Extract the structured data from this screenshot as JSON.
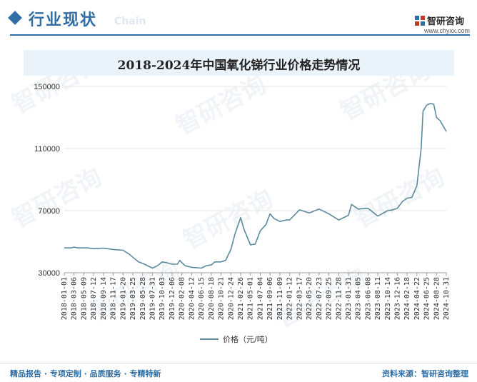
{
  "header": {
    "title": "行业现状",
    "title_en": "Chain",
    "brand_name": "智研咨询",
    "brand_site": "www.chyxx.com"
  },
  "watermark": "智研咨询",
  "footer": {
    "left": "精品报告 · 专项定制 · 品质服务 · 专精特新",
    "right": "资料来源：智研咨询整理"
  },
  "colors": {
    "accent": "#2f6fa6",
    "line": "#5b8a9c",
    "title_bg": "#eaf2fa"
  },
  "chart_data": {
    "type": "line",
    "title": "2018-2024年中国氧化锑行业价格走势情况",
    "xlabel": "",
    "ylabel": "",
    "ylim": [
      30000,
      150000
    ],
    "yticks": [
      30000,
      70000,
      110000,
      150000
    ],
    "legend_position": "bottom",
    "grid": "horizontal",
    "x_ticks": [
      "2018-01-01",
      "2018-03-06",
      "2018-05-09",
      "2018-07-12",
      "2018-09-14",
      "2018-11-17",
      "2019-01-20",
      "2019-03-25",
      "2019-05-28",
      "2019-07-31",
      "2019-10-03",
      "2019-12-06",
      "2020-02-08",
      "2020-04-12",
      "2020-06-15",
      "2020-08-18",
      "2020-10-21",
      "2020-12-24",
      "2021-02-26",
      "2021-05-01",
      "2021-07-04",
      "2021-09-06",
      "2021-11-09",
      "2022-01-12",
      "2022-03-17",
      "2022-05-20",
      "2022-07-23",
      "2022-09-25",
      "2022-11-28",
      "2023-01-31",
      "2023-04-05",
      "2023-06-08",
      "2023-08-11",
      "2023-10-14",
      "2023-12-16",
      "2024-02-18",
      "2024-04-22",
      "2024-06-25",
      "2024-08-28",
      "2024-10-31"
    ],
    "x_tick_labels": [
      "2018-01-01",
      "2018-03-06",
      "2018-05-09",
      "2018-07-12",
      "2018-09-14",
      "2018-11-17",
      "2019-01-20",
      "2019-03-25",
      "2019-05-28",
      "2019-07-31",
      "2019-10-03",
      "2019-12-06",
      "2020-02-08",
      "2020-04-12",
      "2020-06-15",
      "2020-08-18",
      "2020-10-21",
      "2020-12-24",
      "2021-02-26",
      "2021-05-01",
      "2021-07-04",
      "2021-09-06",
      "2021-11-09",
      "2022-01-12",
      "2022-03-17",
      "2022-05-20",
      "2022-07-23",
      "2022-09-25",
      "2022-11-28",
      "2023-01-31",
      "2023-04-05",
      "2023-06-08",
      "2023-08-11",
      "2023-10-14",
      "2023-12-16",
      "2024-02-18",
      "2024-04-22",
      "2024-06-25",
      "2024-08-28",
      "2024-10-31"
    ],
    "series": [
      {
        "name": "价格（元/吨）",
        "color": "#5b8a9c",
        "points": [
          [
            "2018-01-01",
            46000
          ],
          [
            "2018-02-15",
            46000
          ],
          [
            "2018-03-06",
            46500
          ],
          [
            "2018-04-01",
            46000
          ],
          [
            "2018-06-01",
            46000
          ],
          [
            "2018-07-12",
            45500
          ],
          [
            "2018-09-14",
            45800
          ],
          [
            "2018-11-17",
            45000
          ],
          [
            "2019-01-20",
            44500
          ],
          [
            "2019-03-01",
            42000
          ],
          [
            "2019-03-25",
            40000
          ],
          [
            "2019-05-01",
            37000
          ],
          [
            "2019-05-28",
            36000
          ],
          [
            "2019-07-31",
            33000
          ],
          [
            "2019-09-01",
            34500
          ],
          [
            "2019-10-03",
            37000
          ],
          [
            "2019-11-01",
            36500
          ],
          [
            "2019-12-06",
            35500
          ],
          [
            "2020-01-10",
            35500
          ],
          [
            "2020-01-25",
            38000
          ],
          [
            "2020-02-08",
            36500
          ],
          [
            "2020-03-01",
            34500
          ],
          [
            "2020-04-12",
            33500
          ],
          [
            "2020-06-15",
            33000
          ],
          [
            "2020-07-15",
            34500
          ],
          [
            "2020-08-18",
            35000
          ],
          [
            "2020-09-10",
            37000
          ],
          [
            "2020-10-21",
            37000
          ],
          [
            "2020-11-20",
            38000
          ],
          [
            "2020-12-24",
            45000
          ],
          [
            "2021-01-20",
            55000
          ],
          [
            "2021-02-26",
            65500
          ],
          [
            "2021-03-20",
            58000
          ],
          [
            "2021-05-01",
            48000
          ],
          [
            "2021-06-01",
            48500
          ],
          [
            "2021-07-04",
            57000
          ],
          [
            "2021-08-10",
            61000
          ],
          [
            "2021-09-06",
            68000
          ],
          [
            "2021-10-01",
            65000
          ],
          [
            "2021-11-09",
            63000
          ],
          [
            "2021-12-20",
            64000
          ],
          [
            "2022-01-12",
            64000
          ],
          [
            "2022-03-17",
            70500
          ],
          [
            "2022-05-20",
            68500
          ],
          [
            "2022-07-23",
            71000
          ],
          [
            "2022-09-25",
            68000
          ],
          [
            "2022-11-28",
            64000
          ],
          [
            "2023-01-31",
            67000
          ],
          [
            "2023-02-20",
            74000
          ],
          [
            "2023-04-05",
            71000
          ],
          [
            "2023-06-08",
            71500
          ],
          [
            "2023-07-10",
            69000
          ],
          [
            "2023-08-11",
            66500
          ],
          [
            "2023-10-14",
            70000
          ],
          [
            "2023-11-15",
            70500
          ],
          [
            "2023-12-16",
            71500
          ],
          [
            "2024-01-20",
            76000
          ],
          [
            "2024-02-18",
            78000
          ],
          [
            "2024-03-20",
            78500
          ],
          [
            "2024-04-22",
            86000
          ],
          [
            "2024-05-20",
            110000
          ],
          [
            "2024-06-01",
            134000
          ],
          [
            "2024-06-25",
            138000
          ],
          [
            "2024-07-20",
            139000
          ],
          [
            "2024-08-10",
            138500
          ],
          [
            "2024-08-28",
            130000
          ],
          [
            "2024-09-20",
            128000
          ],
          [
            "2024-10-31",
            121000
          ]
        ]
      }
    ]
  }
}
